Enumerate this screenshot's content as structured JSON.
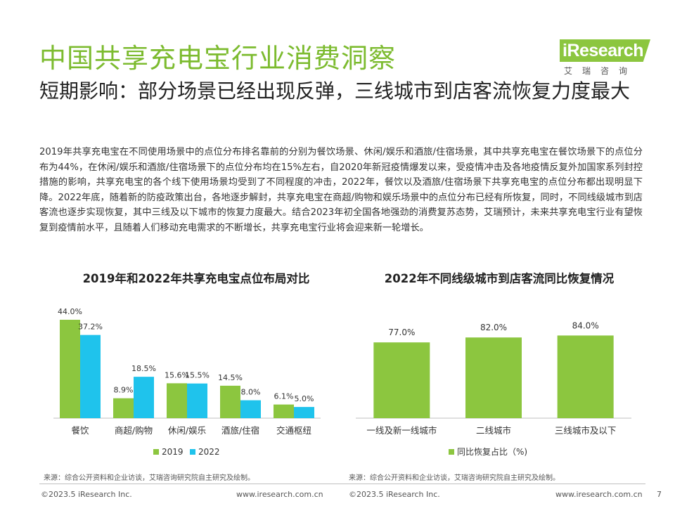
{
  "brand": {
    "logo_text": "iResearch",
    "logo_sub": "艾瑞咨询",
    "colors": {
      "green": "#8cc63f",
      "title_green": "#7cbb2f",
      "blue": "#1fc3ec"
    }
  },
  "header": {
    "title": "中国共享充电宝行业消费洞察",
    "subtitle": "短期影响：部分场景已经出现反弹，三线城市到店客流恢复力度最大"
  },
  "body_text": "2019年共享充电宝在不同使用场景中的点位分布排名靠前的分别为餐饮场景、休闲/娱乐和酒旅/住宿场景，其中共享充电宝在餐饮场景下的点位分布为44%，在休闲/娱乐和酒旅/住宿场景下的点位分布均在15%左右，自2020年新冠疫情爆发以来，受疫情冲击及各地疫情反复外加国家系列封控措施的影响，共享充电宝的各个线下使用场景均受到了不同程度的冲击，2022年，餐饮以及酒旅/住宿场景下共享充电宝的点位分布都出现明显下降。2022年底，随着新的防疫政策出台，各地逐步解封，共享充电宝在商超/购物和娱乐场景中的点位分布已经有所恢复，同时，不同线级城市到店客流也逐步实现恢复，其中三线及以下城市的恢复力度最大。结合2023年初全国各地强劲的消费复苏态势，艾瑞预计，未来共享充电宝行业有望恢复到疫情前水平，且随着人们移动充电需求的不断增长，共享充电宝行业将会迎来新一轮增长。",
  "chart_data": [
    {
      "type": "bar",
      "title": "2019年和2022年共享充电宝点位布局对比",
      "categories": [
        "餐饮",
        "商超/购物",
        "休闲/娱乐",
        "酒旅/住宿",
        "交通枢纽"
      ],
      "series": [
        {
          "name": "2019",
          "values": [
            44.0,
            8.9,
            15.6,
            14.5,
            6.1
          ],
          "labels": [
            "44.0%",
            "8.9%",
            "15.6%",
            "14.5%",
            "6.1%"
          ],
          "color": "#8cc63f"
        },
        {
          "name": "2022",
          "values": [
            37.2,
            18.5,
            15.5,
            8.0,
            5.0
          ],
          "labels": [
            "37.2%",
            "18.5%",
            "15.5%",
            "8.0%",
            "5.0%"
          ],
          "color": "#1fc3ec"
        }
      ],
      "ylim": [
        0,
        44
      ],
      "legend_position": "bottom",
      "grid": false,
      "source": "来源：综合公开资料和企业访谈，艾瑞咨询研究院自主研究及绘制。"
    },
    {
      "type": "bar",
      "title": "2022年不同线级城市到店客流同比恢复情况",
      "categories": [
        "一线及新一线城市",
        "二线城市",
        "三线城市及以下"
      ],
      "series": [
        {
          "name": "同比恢复占比（%)",
          "values": [
            77.0,
            82.0,
            84.0
          ],
          "labels": [
            "77.0%",
            "82.0%",
            "84.0%"
          ],
          "color": "#8cc63f"
        }
      ],
      "ylim": [
        0,
        100
      ],
      "legend_position": "bottom",
      "grid": false,
      "source": "来源：综合公开资料和企业访谈，艾瑞咨询研究院自主研究及绘制。"
    }
  ],
  "footer": {
    "copyright": "©2023.5 iResearch Inc.",
    "url": "www.iresearch.com.cn",
    "page": "7"
  }
}
